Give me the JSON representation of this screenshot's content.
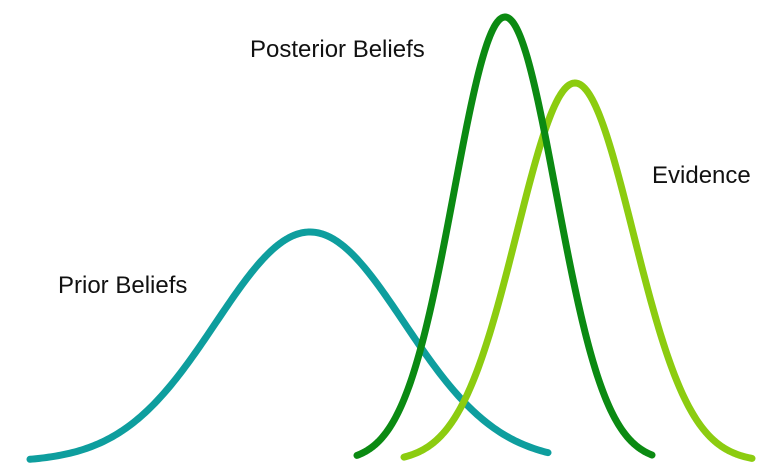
{
  "labels": {
    "prior": "Prior Beliefs",
    "posterior": "Posterior Beliefs",
    "evidence": "Evidence"
  },
  "curves": [
    {
      "id": "prior",
      "color": "#0e9e9e"
    },
    {
      "id": "posterior",
      "color": "#0b8a12"
    },
    {
      "id": "evidence",
      "color": "#8ccc10"
    }
  ]
}
